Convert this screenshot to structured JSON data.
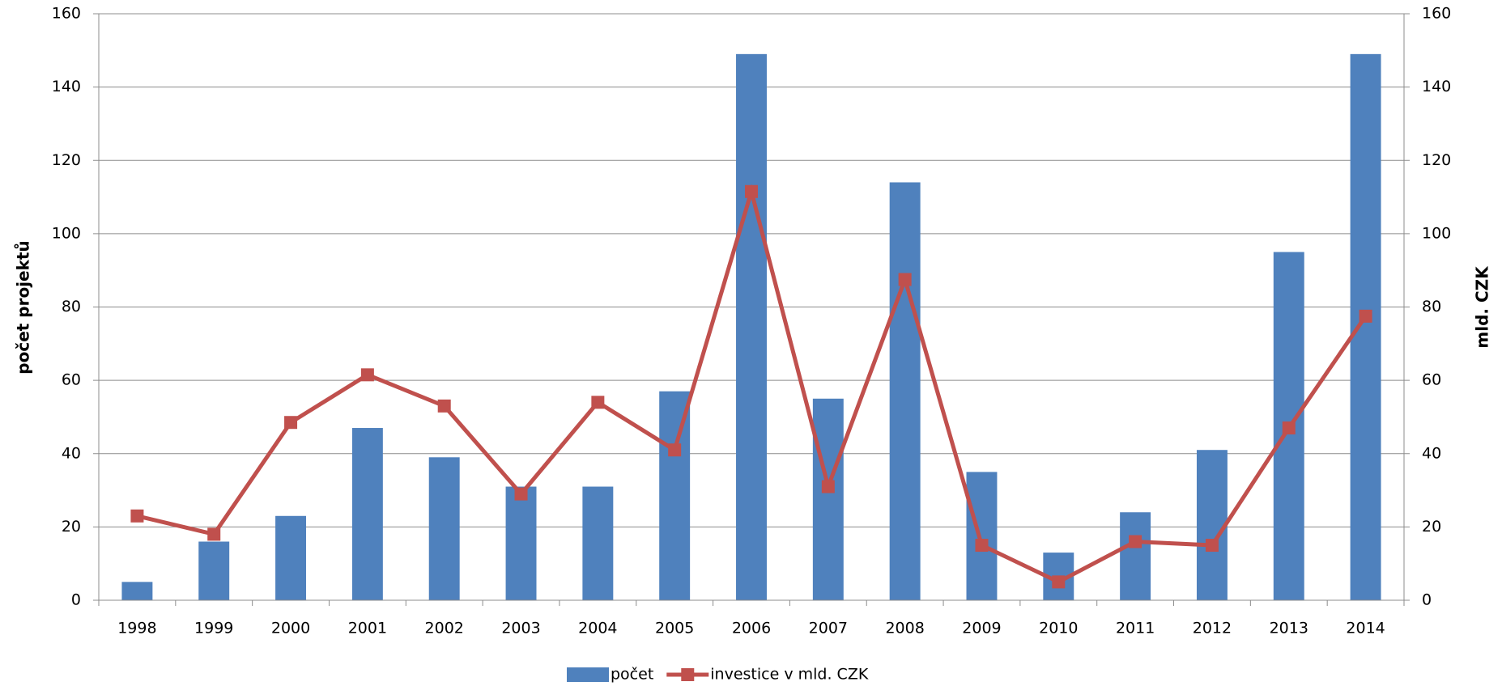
{
  "chart_data": {
    "type": "bar-line",
    "y_label": "počet projektů",
    "y2_label": "mld. CZK",
    "categories": [
      "1998",
      "1999",
      "2000",
      "2001",
      "2002",
      "2003",
      "2004",
      "2005",
      "2006",
      "2007",
      "2008",
      "2009",
      "2010",
      "2011",
      "2012",
      "2013",
      "2014"
    ],
    "series": [
      {
        "name": "počet",
        "type": "bar",
        "color": "#4f81bd",
        "values": [
          5,
          16,
          23,
          47,
          39,
          31,
          31,
          57,
          149,
          55,
          114,
          35,
          13,
          24,
          41,
          95,
          149
        ]
      },
      {
        "name": "investice v mld. CZK",
        "type": "line",
        "axis": "y2",
        "color": "#c0504d",
        "values": [
          23,
          18,
          48.5,
          61.5,
          53,
          29,
          54,
          41,
          111.5,
          31,
          87.5,
          15,
          5,
          16,
          15,
          47,
          77.5
        ]
      }
    ],
    "ylim": [
      0,
      160
    ],
    "yticks": [
      0,
      20,
      40,
      60,
      80,
      100,
      120,
      140,
      160
    ],
    "y2lim": [
      0,
      160
    ],
    "y2ticks": [
      0,
      20,
      40,
      60,
      80,
      100,
      120,
      140,
      160
    ],
    "grid": true,
    "legend": "bottom"
  }
}
